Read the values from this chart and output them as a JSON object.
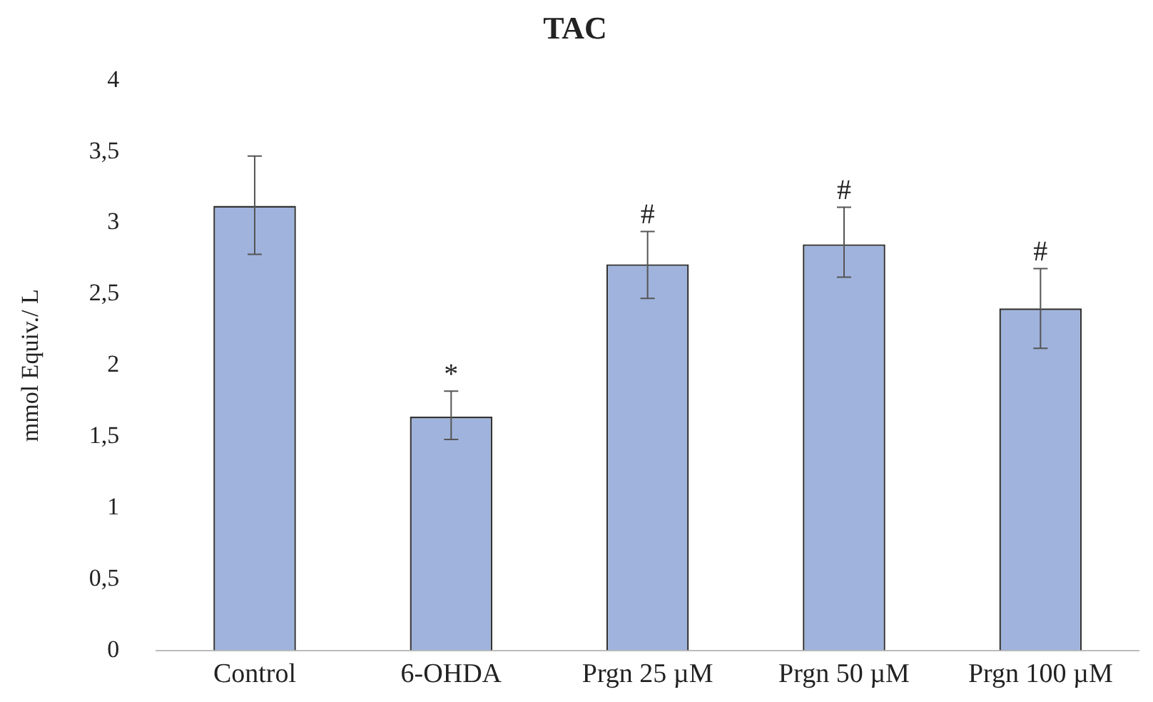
{
  "chart_data": {
    "type": "bar",
    "title": "TAC",
    "ylabel": "mmol Equiv./ L",
    "categories": [
      "Control",
      "6-OHDA",
      "Prgn 25 µM",
      "Prgn 50 µM",
      "Prgn 100 µM"
    ],
    "values": [
      3.12,
      1.64,
      2.71,
      2.85,
      2.4
    ],
    "errors": [
      [
        2.78,
        3.47
      ],
      [
        1.48,
        1.82
      ],
      [
        2.47,
        2.94
      ],
      [
        2.62,
        3.11
      ],
      [
        2.12,
        2.68
      ]
    ],
    "color": "#9fb3dc",
    "ylim": [
      0,
      4
    ],
    "yticks": [
      0,
      {
        "value": 0.5,
        "label": "0,5"
      },
      1,
      {
        "value": 1.5,
        "label": "1,5"
      },
      2,
      {
        "value": 2.5,
        "label": "2,5"
      },
      3,
      {
        "value": 3.5,
        "label": "3,5"
      },
      4
    ],
    "annotations": [
      {
        "text": "*",
        "x": "6-OHDA",
        "y": 1.82
      },
      {
        "text": "#",
        "x": "Prgn 25 µM",
        "y": 2.94
      },
      {
        "text": "#",
        "x": "Prgn 50 µM",
        "y": 3.11
      },
      {
        "text": "#",
        "x": "Prgn 100 µM",
        "y": 2.68
      }
    ],
    "grid": false,
    "legend": false
  }
}
